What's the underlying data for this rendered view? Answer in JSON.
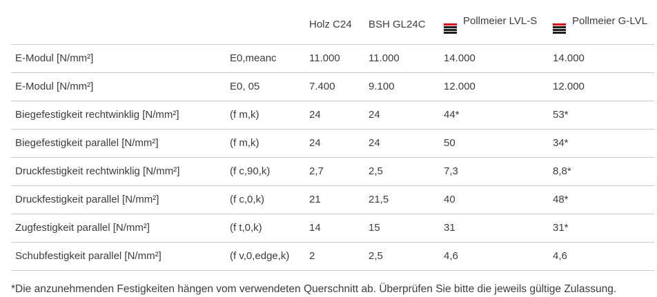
{
  "chart_data": {
    "type": "table",
    "columns": [
      {
        "label": "Holz C24",
        "icon": ""
      },
      {
        "label": "BSH GL24C",
        "icon": ""
      },
      {
        "label": "Pollmeier LVL-S",
        "icon": "pollmeier-logo-icon"
      },
      {
        "label": "Pollmeier G-LVL",
        "icon": "pollmeier-logo-icon"
      }
    ],
    "rows": [
      {
        "label": "E-Modul [N/mm²]",
        "symbol": "E0,meanc",
        "values": [
          "11.000",
          "11.000",
          "14.000",
          "14.000"
        ]
      },
      {
        "label": "E-Modul [N/mm²]",
        "symbol": "E0, 05",
        "values": [
          "7.400",
          "9.100",
          "12.000",
          "12.000"
        ]
      },
      {
        "label": "Biegefestigkeit rechtwinklig [N/mm²]",
        "symbol": "(f m,k)",
        "values": [
          "24",
          "24",
          "44*",
          "53*"
        ]
      },
      {
        "label": "Biegefestigkeit parallel [N/mm²]",
        "symbol": "(f m,k)",
        "values": [
          "24",
          "24",
          "50",
          "34*"
        ]
      },
      {
        "label": "Druckfestigkeit rechtwinklig [N/mm²]",
        "symbol": "(f c,90,k)",
        "values": [
          "2,7",
          "2,5",
          "7,3",
          "8,8*"
        ]
      },
      {
        "label": "Druckfestigkeit parallel [N/mm²]",
        "symbol": "(f c,0,k)",
        "values": [
          "21",
          "21,5",
          "40",
          "48*"
        ]
      },
      {
        "label": "Zugfestigkeit parallel [N/mm²]",
        "symbol": "(f t,0,k)",
        "values": [
          "14",
          "15",
          "31",
          "31*"
        ]
      },
      {
        "label": "Schubfestigkeit parallel [N/mm²]",
        "symbol": "(f v,0,edge,k)",
        "values": [
          "2",
          "2,5",
          "4,6",
          "4,6"
        ]
      }
    ],
    "footnote": "*Die anzunehmenden Festigkeiten hängen vom verwendeten Querschnitt ab. Überprüfen Sie bitte die jeweils gültige Zulassung."
  },
  "colors": {
    "text": "#3c3c3c",
    "border": "#c9c9c9",
    "logo_red": "#e2001a",
    "logo_black": "#1d1d1b"
  }
}
